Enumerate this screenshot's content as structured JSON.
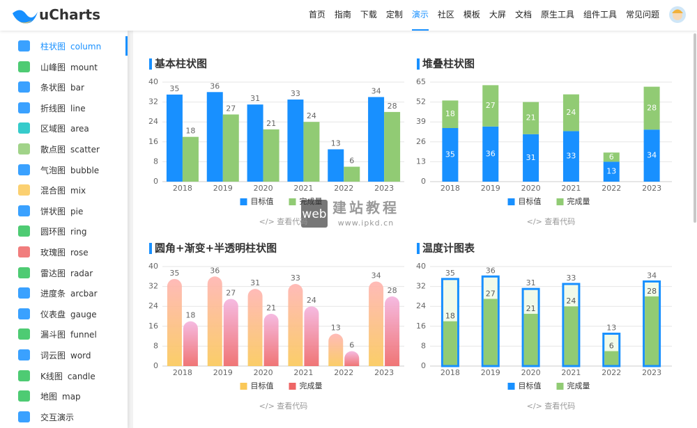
{
  "header": {
    "logo": "uCharts",
    "nav": [
      "首页",
      "指南",
      "下载",
      "定制",
      "演示",
      "社区",
      "模板",
      "大屏",
      "文档",
      "原生工具",
      "组件工具",
      "常见问题"
    ],
    "active_nav": 4
  },
  "sidebar": {
    "active": 0,
    "items": [
      {
        "cn": "柱状图",
        "en": "column"
      },
      {
        "cn": "山峰图",
        "en": "mount"
      },
      {
        "cn": "条状图",
        "en": "bar"
      },
      {
        "cn": "折线图",
        "en": "line"
      },
      {
        "cn": "区域图",
        "en": "area"
      },
      {
        "cn": "散点图",
        "en": "scatter"
      },
      {
        "cn": "气泡图",
        "en": "bubble"
      },
      {
        "cn": "混合图",
        "en": "mix"
      },
      {
        "cn": "饼状图",
        "en": "pie"
      },
      {
        "cn": "圆环图",
        "en": "ring"
      },
      {
        "cn": "玫瑰图",
        "en": "rose"
      },
      {
        "cn": "雷达图",
        "en": "radar"
      },
      {
        "cn": "进度条",
        "en": "arcbar"
      },
      {
        "cn": "仪表盘",
        "en": "gauge"
      },
      {
        "cn": "漏斗图",
        "en": "funnel"
      },
      {
        "cn": "词云图",
        "en": "word"
      },
      {
        "cn": "K线图",
        "en": "candle"
      },
      {
        "cn": "地图",
        "en": "map"
      },
      {
        "cn": "交互演示",
        "en": ""
      }
    ]
  },
  "watermark": {
    "badge": "web",
    "title": "建站教程",
    "url": "www.ipkd.cn"
  },
  "chart_data": [
    {
      "type": "bar",
      "title": "基本柱状图",
      "link": "</> 查看代码",
      "categories": [
        "2018",
        "2019",
        "2020",
        "2021",
        "2022",
        "2023"
      ],
      "series": [
        {
          "name": "目标值",
          "color": "#1890ff",
          "values": [
            35,
            36,
            31,
            33,
            13,
            34
          ]
        },
        {
          "name": "完成量",
          "color": "#91cb74",
          "values": [
            18,
            27,
            21,
            24,
            6,
            28
          ]
        }
      ],
      "ylim": [
        0,
        40
      ],
      "yticks": [
        0,
        8,
        16,
        24,
        32,
        40
      ],
      "grid": true
    },
    {
      "type": "bar",
      "stacked": true,
      "title": "堆叠柱状图",
      "link": "</> 查看代码",
      "categories": [
        "2018",
        "2019",
        "2020",
        "2021",
        "2022",
        "2023"
      ],
      "series": [
        {
          "name": "目标值",
          "color": "#1890ff",
          "values": [
            35,
            36,
            31,
            33,
            13,
            34
          ]
        },
        {
          "name": "完成量",
          "color": "#91cb74",
          "values": [
            18,
            27,
            21,
            24,
            6,
            28
          ]
        }
      ],
      "ylim": [
        0,
        65
      ],
      "yticks": [
        0,
        13,
        26,
        39,
        52,
        65
      ],
      "grid": true
    },
    {
      "type": "bar",
      "rounded": true,
      "title": "圆角+渐变+半透明柱状图",
      "link": "</> 查看代码",
      "categories": [
        "2018",
        "2019",
        "2020",
        "2021",
        "2022",
        "2023"
      ],
      "series": [
        {
          "name": "目标值",
          "color": "#fac858",
          "color_top": "#ffb3b0",
          "values": [
            35,
            36,
            31,
            33,
            13,
            34
          ]
        },
        {
          "name": "完成量",
          "color": "#ee6666",
          "color_top": "#f4b3de",
          "values": [
            18,
            27,
            21,
            24,
            6,
            28
          ]
        }
      ],
      "ylim": [
        0,
        40
      ],
      "yticks": [
        0,
        8,
        16,
        24,
        32,
        40
      ],
      "grid": true
    },
    {
      "type": "bar",
      "mode": "thermometer",
      "title": "温度计图表",
      "link": "</> 查看代码",
      "categories": [
        "2018",
        "2019",
        "2020",
        "2021",
        "2022",
        "2023"
      ],
      "series": [
        {
          "name": "目标值",
          "color": "#1890ff",
          "values": [
            35,
            36,
            31,
            33,
            13,
            34
          ]
        },
        {
          "name": "完成量",
          "color": "#91cb74",
          "values": [
            18,
            27,
            21,
            24,
            6,
            28
          ]
        }
      ],
      "ylim": [
        0,
        40
      ],
      "yticks": [
        0,
        8,
        16,
        24,
        32,
        40
      ],
      "grid": true
    }
  ]
}
